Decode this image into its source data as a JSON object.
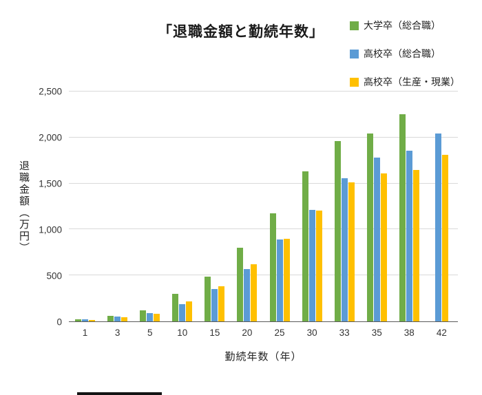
{
  "chart_data": {
    "type": "bar",
    "title": "「退職金額と勤続年数」",
    "xlabel": "勤続年数（年）",
    "ylabel": "退職金額（万円）",
    "ylim": [
      0,
      2500
    ],
    "ytick_interval": 500,
    "yticks": [
      "0",
      "500",
      "1,000",
      "1,500",
      "2,000",
      "2,500"
    ],
    "grid": true,
    "legend_position": "top-right",
    "categories": [
      "1",
      "3",
      "5",
      "10",
      "15",
      "20",
      "25",
      "30",
      "33",
      "35",
      "38",
      "42"
    ],
    "series": [
      {
        "name": "大学卒（総合職）",
        "color": "#70AD47",
        "values": [
          25,
          60,
          120,
          300,
          490,
          800,
          1175,
          1630,
          1960,
          2040,
          2250,
          null
        ]
      },
      {
        "name": "高校卒（総合職）",
        "color": "#5B9BD5",
        "values": [
          20,
          50,
          90,
          190,
          350,
          570,
          890,
          1215,
          1560,
          1780,
          1855,
          2040
        ]
      },
      {
        "name": "高校卒（生産・現業）",
        "color": "#FFC000",
        "values": [
          15,
          45,
          85,
          215,
          385,
          620,
          895,
          1205,
          1515,
          1610,
          1645,
          1810
        ]
      }
    ]
  }
}
